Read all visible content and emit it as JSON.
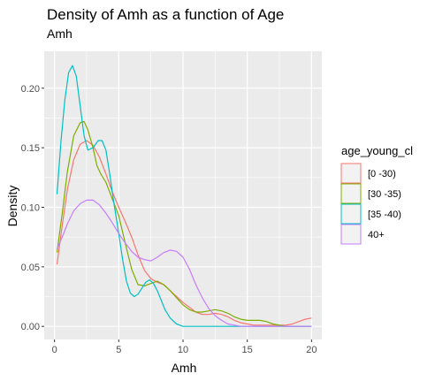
{
  "chart_data": {
    "type": "line",
    "title": "Density of Amh as a function of Age",
    "subtitle": "Amh",
    "xlabel": "Amh",
    "ylabel": "Density",
    "xlim": [
      -0.8,
      20.8
    ],
    "ylim": [
      -0.011,
      0.231
    ],
    "x_ticks": [
      0,
      5,
      10,
      15,
      20
    ],
    "y_ticks": [
      0.0,
      0.05,
      0.1,
      0.15,
      0.2
    ],
    "y_tick_labels": [
      "0.00",
      "0.05",
      "0.10",
      "0.15",
      "0.20"
    ],
    "grid": true,
    "panel_background": "#ebebeb",
    "legend": {
      "title": "age_young_cl",
      "position": "right"
    },
    "series": [
      {
        "name": "[0 -30)",
        "color": "#F8766D",
        "points": [
          [
            0.2,
            0.052
          ],
          [
            0.6,
            0.085
          ],
          [
            1.0,
            0.115
          ],
          [
            1.5,
            0.14
          ],
          [
            2.0,
            0.153
          ],
          [
            2.5,
            0.156
          ],
          [
            3.0,
            0.152
          ],
          [
            3.5,
            0.142
          ],
          [
            4.0,
            0.128
          ],
          [
            4.5,
            0.113
          ],
          [
            5.0,
            0.1
          ],
          [
            5.5,
            0.088
          ],
          [
            6.0,
            0.075
          ],
          [
            6.5,
            0.06
          ],
          [
            7.0,
            0.047
          ],
          [
            7.5,
            0.04
          ],
          [
            8.0,
            0.037
          ],
          [
            8.5,
            0.035
          ],
          [
            9.0,
            0.03
          ],
          [
            9.5,
            0.025
          ],
          [
            10.0,
            0.02
          ],
          [
            10.5,
            0.016
          ],
          [
            11.0,
            0.012
          ],
          [
            11.5,
            0.01
          ],
          [
            12.0,
            0.01
          ],
          [
            12.5,
            0.011
          ],
          [
            13.0,
            0.01
          ],
          [
            13.5,
            0.008
          ],
          [
            14.0,
            0.005
          ],
          [
            14.5,
            0.003
          ],
          [
            15.0,
            0.002
          ],
          [
            15.5,
            0.001
          ],
          [
            16.0,
            0.001
          ],
          [
            16.5,
            0.001
          ],
          [
            17.0,
            0.001
          ],
          [
            17.5,
            0.001
          ],
          [
            18.0,
            0.001
          ],
          [
            18.5,
            0.002
          ],
          [
            19.0,
            0.004
          ],
          [
            19.5,
            0.006
          ],
          [
            20.0,
            0.007
          ]
        ]
      },
      {
        "name": "[30 -35)",
        "color": "#7CAE00",
        "points": [
          [
            0.2,
            0.062
          ],
          [
            0.6,
            0.095
          ],
          [
            1.0,
            0.13
          ],
          [
            1.5,
            0.16
          ],
          [
            2.0,
            0.171
          ],
          [
            2.3,
            0.172
          ],
          [
            2.6,
            0.165
          ],
          [
            3.0,
            0.15
          ],
          [
            3.3,
            0.135
          ],
          [
            3.6,
            0.128
          ],
          [
            4.0,
            0.121
          ],
          [
            4.5,
            0.107
          ],
          [
            5.0,
            0.093
          ],
          [
            5.5,
            0.07
          ],
          [
            6.0,
            0.048
          ],
          [
            6.5,
            0.035
          ],
          [
            7.0,
            0.034
          ],
          [
            7.5,
            0.036
          ],
          [
            8.0,
            0.038
          ],
          [
            8.5,
            0.035
          ],
          [
            9.0,
            0.03
          ],
          [
            9.5,
            0.024
          ],
          [
            10.0,
            0.018
          ],
          [
            10.5,
            0.014
          ],
          [
            11.0,
            0.012
          ],
          [
            11.5,
            0.012
          ],
          [
            12.0,
            0.013
          ],
          [
            12.5,
            0.014
          ],
          [
            13.0,
            0.013
          ],
          [
            13.5,
            0.011
          ],
          [
            14.0,
            0.008
          ],
          [
            14.5,
            0.006
          ],
          [
            15.0,
            0.005
          ],
          [
            15.5,
            0.005
          ],
          [
            16.0,
            0.005
          ],
          [
            16.5,
            0.004
          ],
          [
            17.0,
            0.002
          ],
          [
            17.5,
            0.001
          ],
          [
            18.0,
            0.0
          ],
          [
            18.5,
            0.0
          ],
          [
            19.0,
            0.0
          ],
          [
            19.5,
            0.0
          ],
          [
            20.0,
            0.0
          ]
        ]
      },
      {
        "name": "[35 -40)",
        "color": "#00BFC4",
        "points": [
          [
            0.2,
            0.111
          ],
          [
            0.5,
            0.155
          ],
          [
            0.8,
            0.19
          ],
          [
            1.1,
            0.213
          ],
          [
            1.4,
            0.219
          ],
          [
            1.7,
            0.21
          ],
          [
            2.0,
            0.185
          ],
          [
            2.3,
            0.16
          ],
          [
            2.6,
            0.148
          ],
          [
            3.0,
            0.15
          ],
          [
            3.4,
            0.156
          ],
          [
            3.7,
            0.156
          ],
          [
            4.0,
            0.148
          ],
          [
            4.3,
            0.128
          ],
          [
            4.6,
            0.105
          ],
          [
            5.0,
            0.078
          ],
          [
            5.3,
            0.056
          ],
          [
            5.6,
            0.038
          ],
          [
            5.9,
            0.028
          ],
          [
            6.2,
            0.025
          ],
          [
            6.5,
            0.027
          ],
          [
            6.8,
            0.032
          ],
          [
            7.1,
            0.037
          ],
          [
            7.4,
            0.039
          ],
          [
            7.7,
            0.036
          ],
          [
            8.0,
            0.03
          ],
          [
            8.3,
            0.022
          ],
          [
            8.6,
            0.014
          ],
          [
            9.0,
            0.007
          ],
          [
            9.5,
            0.002
          ],
          [
            10.0,
            0.0
          ],
          [
            11.0,
            0.0
          ],
          [
            12.0,
            0.0
          ],
          [
            13.0,
            0.0
          ],
          [
            14.0,
            0.0
          ],
          [
            15.0,
            0.0
          ],
          [
            16.0,
            0.0
          ],
          [
            17.0,
            0.0
          ],
          [
            18.0,
            0.0
          ],
          [
            19.0,
            0.0
          ],
          [
            20.0,
            0.0
          ]
        ]
      },
      {
        "name": "40+",
        "color": "#C77CFF",
        "points": [
          [
            0.2,
            0.065
          ],
          [
            0.6,
            0.075
          ],
          [
            1.0,
            0.086
          ],
          [
            1.5,
            0.097
          ],
          [
            2.0,
            0.103
          ],
          [
            2.5,
            0.106
          ],
          [
            3.0,
            0.106
          ],
          [
            3.5,
            0.102
          ],
          [
            4.0,
            0.095
          ],
          [
            4.5,
            0.087
          ],
          [
            5.0,
            0.078
          ],
          [
            5.5,
            0.07
          ],
          [
            6.0,
            0.063
          ],
          [
            6.5,
            0.058
          ],
          [
            7.0,
            0.056
          ],
          [
            7.5,
            0.055
          ],
          [
            8.0,
            0.058
          ],
          [
            8.5,
            0.062
          ],
          [
            9.0,
            0.064
          ],
          [
            9.5,
            0.063
          ],
          [
            10.0,
            0.058
          ],
          [
            10.5,
            0.048
          ],
          [
            11.0,
            0.035
          ],
          [
            11.5,
            0.024
          ],
          [
            12.0,
            0.015
          ],
          [
            12.5,
            0.009
          ],
          [
            13.0,
            0.005
          ],
          [
            13.5,
            0.002
          ],
          [
            14.0,
            0.001
          ],
          [
            14.5,
            0.0
          ],
          [
            15.0,
            0.0
          ],
          [
            16.0,
            0.0
          ],
          [
            17.0,
            0.0
          ],
          [
            18.0,
            0.0
          ],
          [
            19.0,
            0.0
          ],
          [
            20.0,
            0.0
          ]
        ]
      }
    ]
  }
}
